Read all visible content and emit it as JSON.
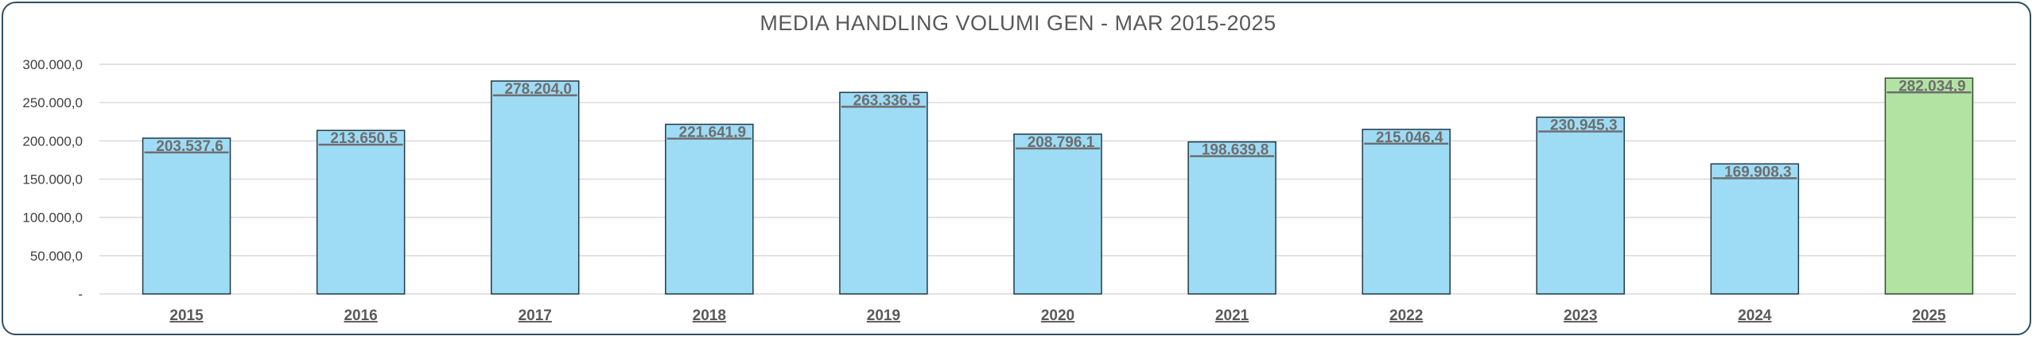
{
  "chart_data": {
    "type": "bar",
    "title": "MEDIA HANDLING VOLUMI GEN - MAR  2015-2025",
    "categories": [
      "2015",
      "2016",
      "2017",
      "2018",
      "2019",
      "2020",
      "2021",
      "2022",
      "2023",
      "2024",
      "2025"
    ],
    "values": [
      203537.6,
      213650.5,
      278204.0,
      221641.9,
      263336.5,
      208796.1,
      198639.8,
      215046.4,
      230945.3,
      169908.3,
      282034.9
    ],
    "data_labels": [
      "203.537,6",
      "213.650,5",
      "278.204,0",
      "221.641,9",
      "263.336,5",
      "208.796,1",
      "198.639,8",
      "215.046,4",
      "230.945,3",
      "169.908,3",
      "282.034,9"
    ],
    "y_ticks": [
      {
        "value": 0,
        "label": "-"
      },
      {
        "value": 50000,
        "label": "50.000,0"
      },
      {
        "value": 100000,
        "label": "100.000,0"
      },
      {
        "value": 150000,
        "label": "150.000,0"
      },
      {
        "value": 200000,
        "label": "200.000,0"
      },
      {
        "value": 250000,
        "label": "250.000,0"
      },
      {
        "value": 300000,
        "label": "300.000,0"
      }
    ],
    "ylim": [
      0,
      300000
    ],
    "grid": true,
    "xlabel": "",
    "ylabel": "",
    "colors": {
      "bar": "#9edcf5",
      "bar_highlight": "#b2e3a3",
      "bar_stroke": "#1f3a4a",
      "highlight_stroke": "#2e4d2e",
      "grid": "#d9d9d9"
    },
    "highlight_category": "2025"
  }
}
